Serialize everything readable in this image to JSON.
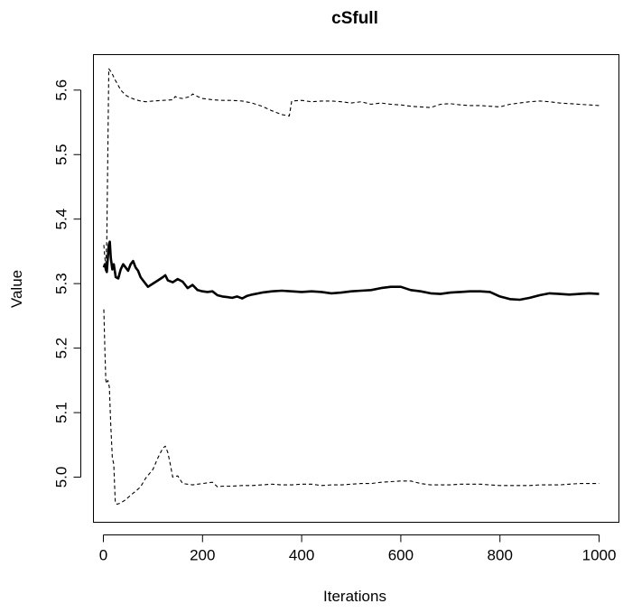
{
  "chart_data": {
    "type": "line",
    "title": "cSfull",
    "xlabel": "Iterations",
    "ylabel": "Value",
    "xlim": [
      -20,
      1040
    ],
    "ylim": [
      4.93,
      5.655
    ],
    "xticks": [
      0,
      200,
      400,
      600,
      800,
      1000
    ],
    "yticks": [
      5.0,
      5.1,
      5.2,
      5.3,
      5.4,
      5.5,
      5.6
    ],
    "xtick_labels": [
      "0",
      "200",
      "400",
      "600",
      "800",
      "1000"
    ],
    "ytick_labels": [
      "5.0",
      "5.1",
      "5.2",
      "5.3",
      "5.4",
      "5.5",
      "5.6"
    ],
    "grid": false,
    "legend": false,
    "series": [
      {
        "style": "solid-thick",
        "x": [
          1,
          3,
          5,
          7,
          9,
          11,
          13,
          15,
          18,
          21,
          25,
          30,
          35,
          40,
          45,
          50,
          55,
          60,
          65,
          70,
          75,
          80,
          90,
          100,
          110,
          120,
          125,
          130,
          140,
          150,
          160,
          170,
          180,
          190,
          200,
          210,
          220,
          230,
          240,
          250,
          260,
          270,
          280,
          290,
          300,
          320,
          340,
          360,
          380,
          400,
          420,
          440,
          460,
          480,
          500,
          520,
          540,
          560,
          580,
          600,
          620,
          640,
          660,
          680,
          700,
          720,
          740,
          760,
          780,
          800,
          820,
          840,
          860,
          880,
          900,
          920,
          940,
          960,
          980,
          1000
        ],
        "y": [
          5.325,
          5.33,
          5.322,
          5.318,
          5.34,
          5.36,
          5.365,
          5.34,
          5.322,
          5.33,
          5.31,
          5.308,
          5.322,
          5.33,
          5.325,
          5.32,
          5.33,
          5.335,
          5.325,
          5.32,
          5.31,
          5.305,
          5.295,
          5.3,
          5.305,
          5.31,
          5.313,
          5.305,
          5.302,
          5.307,
          5.303,
          5.293,
          5.298,
          5.29,
          5.288,
          5.287,
          5.288,
          5.282,
          5.28,
          5.279,
          5.278,
          5.28,
          5.277,
          5.281,
          5.283,
          5.286,
          5.288,
          5.289,
          5.288,
          5.287,
          5.288,
          5.287,
          5.285,
          5.286,
          5.288,
          5.289,
          5.29,
          5.293,
          5.295,
          5.295,
          5.29,
          5.288,
          5.285,
          5.284,
          5.286,
          5.287,
          5.288,
          5.288,
          5.287,
          5.28,
          5.276,
          5.275,
          5.278,
          5.282,
          5.285,
          5.284,
          5.283,
          5.284,
          5.285,
          5.284
        ]
      },
      {
        "style": "dashed",
        "x": [
          1,
          3,
          5,
          7,
          9,
          11,
          14,
          18,
          22,
          28,
          35,
          45,
          55,
          65,
          75,
          85,
          100,
          120,
          140,
          145,
          150,
          160,
          175,
          180,
          190,
          200,
          220,
          240,
          260,
          280,
          300,
          320,
          340,
          360,
          375,
          380,
          400,
          420,
          440,
          460,
          480,
          500,
          520,
          540,
          560,
          580,
          600,
          620,
          640,
          660,
          680,
          700,
          720,
          740,
          760,
          780,
          800,
          820,
          840,
          860,
          880,
          900,
          920,
          940,
          960,
          980,
          1000
        ],
        "y": [
          5.36,
          5.34,
          5.33,
          5.37,
          5.5,
          5.633,
          5.63,
          5.625,
          5.618,
          5.61,
          5.6,
          5.592,
          5.588,
          5.585,
          5.583,
          5.582,
          5.583,
          5.584,
          5.585,
          5.59,
          5.588,
          5.587,
          5.59,
          5.594,
          5.59,
          5.587,
          5.585,
          5.584,
          5.584,
          5.583,
          5.58,
          5.575,
          5.568,
          5.562,
          5.56,
          5.583,
          5.584,
          5.582,
          5.583,
          5.583,
          5.582,
          5.58,
          5.582,
          5.578,
          5.58,
          5.578,
          5.577,
          5.575,
          5.574,
          5.573,
          5.578,
          5.579,
          5.577,
          5.576,
          5.576,
          5.575,
          5.574,
          5.578,
          5.58,
          5.582,
          5.583,
          5.582,
          5.58,
          5.579,
          5.578,
          5.577,
          5.576
        ]
      },
      {
        "style": "dashed",
        "x": [
          1,
          3,
          5,
          7,
          9,
          12,
          15,
          18,
          21,
          24,
          28,
          35,
          45,
          55,
          65,
          75,
          85,
          100,
          110,
          120,
          125,
          130,
          135,
          140,
          150,
          160,
          180,
          200,
          220,
          230,
          240,
          260,
          280,
          300,
          320,
          340,
          360,
          380,
          400,
          420,
          440,
          460,
          480,
          500,
          520,
          540,
          560,
          580,
          600,
          620,
          640,
          660,
          680,
          700,
          720,
          740,
          760,
          780,
          800,
          820,
          840,
          860,
          880,
          900,
          920,
          940,
          960,
          980,
          1000
        ],
        "y": [
          5.26,
          5.2,
          5.15,
          5.145,
          5.15,
          5.14,
          5.08,
          5.03,
          5.02,
          4.96,
          4.958,
          4.96,
          4.965,
          4.972,
          4.978,
          4.985,
          4.998,
          5.012,
          5.03,
          5.045,
          5.048,
          5.038,
          5.02,
          5.0,
          5.002,
          4.99,
          4.988,
          4.99,
          4.992,
          4.985,
          4.986,
          4.986,
          4.987,
          4.987,
          4.988,
          4.989,
          4.988,
          4.988,
          4.989,
          4.989,
          4.987,
          4.988,
          4.988,
          4.989,
          4.99,
          4.99,
          4.992,
          4.993,
          4.994,
          4.994,
          4.99,
          4.988,
          4.988,
          4.988,
          4.989,
          4.989,
          4.989,
          4.988,
          4.987,
          4.987,
          4.987,
          4.987,
          4.988,
          4.988,
          4.988,
          4.989,
          4.99,
          4.99,
          4.99
        ]
      }
    ]
  }
}
